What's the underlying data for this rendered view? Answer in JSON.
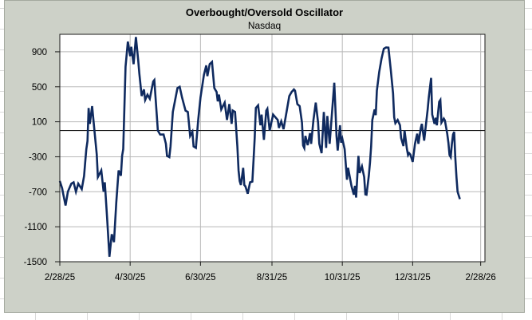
{
  "chart_data": {
    "type": "line",
    "title": "Overbought/Oversold Oscillator",
    "subtitle": "Nasdaq",
    "x_axis": {
      "tick_labels": [
        "2/28/25",
        "4/30/25",
        "6/30/25",
        "8/31/25",
        "10/31/25",
        "12/31/25",
        "2/28/26"
      ],
      "tick_days": [
        0,
        61,
        122,
        184,
        245,
        306,
        365
      ],
      "start_date": "2/28/25",
      "max_day": 368.7
    },
    "y_axis": {
      "tick_labels": [
        "900",
        "500",
        "100",
        "-300",
        "-700",
        "-1100",
        "-1500"
      ],
      "ticks": [
        900,
        500,
        100,
        -300,
        -700,
        -1100,
        -1500
      ],
      "ylim": [
        -1500,
        1100
      ],
      "zero_line": true
    },
    "grid": true,
    "legend": false,
    "colors": {
      "chart_bg": "#cdd1c8",
      "plot_bg": "#ffffff",
      "line": "#0f2a5f",
      "gridline": "#b8b8b8",
      "axis": "#1a1a1a",
      "zero_line": "#1a1a1a"
    },
    "series": [
      {
        "name": "Nasdaq Overbought/Oversold Oscillator",
        "points": [
          [
            0,
            -578
          ],
          [
            2,
            -660
          ],
          [
            3,
            -727
          ],
          [
            5,
            -857
          ],
          [
            7,
            -700
          ],
          [
            9,
            -637
          ],
          [
            10,
            -607
          ],
          [
            12,
            -592
          ],
          [
            14,
            -700
          ],
          [
            16,
            -607
          ],
          [
            19,
            -670
          ],
          [
            21,
            -520
          ],
          [
            22,
            -364
          ],
          [
            23,
            -215
          ],
          [
            24,
            -120
          ],
          [
            25,
            258
          ],
          [
            26,
            76
          ],
          [
            28,
            279
          ],
          [
            30,
            0
          ],
          [
            32,
            -273
          ],
          [
            33,
            -532
          ],
          [
            36,
            -456
          ],
          [
            38,
            -699
          ],
          [
            39,
            -592
          ],
          [
            41,
            -1002
          ],
          [
            43,
            -1443
          ],
          [
            45,
            -1185
          ],
          [
            47,
            -1276
          ],
          [
            49,
            -820
          ],
          [
            51,
            -456
          ],
          [
            53,
            -517
          ],
          [
            54,
            -289
          ],
          [
            55,
            -213
          ],
          [
            57,
            729
          ],
          [
            59,
            1017
          ],
          [
            61,
            850
          ],
          [
            62,
            957
          ],
          [
            64,
            759
          ],
          [
            66,
            1069
          ],
          [
            68,
            800
          ],
          [
            69,
            652
          ],
          [
            71,
            395
          ],
          [
            73,
            470
          ],
          [
            74,
            349
          ],
          [
            76,
            410
          ],
          [
            78,
            364
          ],
          [
            81,
            561
          ],
          [
            82,
            577
          ],
          [
            85,
            0
          ],
          [
            87,
            -46
          ],
          [
            90,
            -46
          ],
          [
            92,
            -152
          ],
          [
            93,
            -289
          ],
          [
            95,
            -304
          ],
          [
            96,
            -182
          ],
          [
            98,
            212
          ],
          [
            100,
            349
          ],
          [
            102,
            486
          ],
          [
            104,
            501
          ],
          [
            106,
            379
          ],
          [
            109,
            228
          ],
          [
            111,
            212
          ],
          [
            113,
            -61
          ],
          [
            115,
            -15
          ],
          [
            116,
            -182
          ],
          [
            118,
            -198
          ],
          [
            120,
            121
          ],
          [
            122,
            379
          ],
          [
            125,
            638
          ],
          [
            127,
            744
          ],
          [
            128,
            622
          ],
          [
            130,
            759
          ],
          [
            132,
            784
          ],
          [
            134,
            486
          ],
          [
            136,
            440
          ],
          [
            137,
            334
          ],
          [
            138,
            410
          ],
          [
            140,
            242
          ],
          [
            143,
            319
          ],
          [
            145,
            121
          ],
          [
            147,
            303
          ],
          [
            149,
            76
          ],
          [
            150,
            228
          ],
          [
            152,
            212
          ],
          [
            154,
            -182
          ],
          [
            155,
            -456
          ],
          [
            156,
            -578
          ],
          [
            157,
            -623
          ],
          [
            159,
            -426
          ],
          [
            160,
            -623
          ],
          [
            161,
            -638
          ],
          [
            163,
            -723
          ],
          [
            165,
            -592
          ],
          [
            167,
            -583
          ],
          [
            168,
            -334
          ],
          [
            169,
            -91
          ],
          [
            170,
            258
          ],
          [
            172,
            288
          ],
          [
            174,
            60
          ],
          [
            175,
            182
          ],
          [
            177,
            -106
          ],
          [
            179,
            228
          ],
          [
            180,
            249
          ],
          [
            182,
            0
          ],
          [
            185,
            182
          ],
          [
            189,
            121
          ],
          [
            190,
            30
          ],
          [
            192,
            106
          ],
          [
            194,
            15
          ],
          [
            197,
            242
          ],
          [
            199,
            395
          ],
          [
            201,
            440
          ],
          [
            203,
            470
          ],
          [
            204,
            456
          ],
          [
            206,
            303
          ],
          [
            208,
            279
          ],
          [
            210,
            91
          ],
          [
            211,
            -170
          ],
          [
            212,
            -200
          ],
          [
            213,
            -61
          ],
          [
            215,
            -167
          ],
          [
            217,
            -30
          ],
          [
            218,
            -152
          ],
          [
            220,
            121
          ],
          [
            222,
            319
          ],
          [
            224,
            91
          ],
          [
            225,
            -152
          ],
          [
            227,
            -258
          ],
          [
            229,
            212
          ],
          [
            231,
            -198
          ],
          [
            232,
            167
          ],
          [
            234,
            -152
          ],
          [
            238,
            546
          ],
          [
            239,
            258
          ],
          [
            240,
            -61
          ],
          [
            241,
            -228
          ],
          [
            243,
            60
          ],
          [
            244,
            -139
          ],
          [
            245,
            -94
          ],
          [
            247,
            -214
          ],
          [
            249,
            -562
          ],
          [
            250,
            -426
          ],
          [
            253,
            -635
          ],
          [
            255,
            -734
          ],
          [
            256,
            -632
          ],
          [
            257,
            -766
          ],
          [
            259,
            -289
          ],
          [
            260,
            -486
          ],
          [
            262,
            -410
          ],
          [
            264,
            -532
          ],
          [
            265,
            -730
          ],
          [
            266,
            -734
          ],
          [
            268,
            -517
          ],
          [
            269,
            -364
          ],
          [
            270,
            -182
          ],
          [
            271,
            121
          ],
          [
            273,
            242
          ],
          [
            274,
            176
          ],
          [
            275,
            456
          ],
          [
            277,
            668
          ],
          [
            279,
            820
          ],
          [
            281,
            935
          ],
          [
            283,
            950
          ],
          [
            285,
            948
          ],
          [
            287,
            698
          ],
          [
            289,
            425
          ],
          [
            290,
            151
          ],
          [
            291,
            85
          ],
          [
            293,
            121
          ],
          [
            295,
            60
          ],
          [
            296,
            -86
          ],
          [
            298,
            -177
          ],
          [
            299,
            0
          ],
          [
            301,
            -207
          ],
          [
            302,
            -280
          ],
          [
            303,
            -258
          ],
          [
            304,
            -274
          ],
          [
            306,
            -359
          ],
          [
            308,
            -152
          ],
          [
            309,
            -91
          ],
          [
            310,
            -36
          ],
          [
            311,
            -152
          ],
          [
            313,
            24
          ],
          [
            314,
            76
          ],
          [
            316,
            -115
          ],
          [
            318,
            121
          ],
          [
            319,
            242
          ],
          [
            320,
            379
          ],
          [
            322,
            601
          ],
          [
            323,
            182
          ],
          [
            325,
            76
          ],
          [
            326,
            146
          ],
          [
            327,
            60
          ],
          [
            329,
            328
          ],
          [
            330,
            349
          ],
          [
            331,
            91
          ],
          [
            333,
            137
          ],
          [
            334,
            115
          ],
          [
            336,
            -36
          ],
          [
            337,
            -140
          ],
          [
            338,
            -280
          ],
          [
            339,
            -304
          ],
          [
            340,
            -158
          ],
          [
            341,
            -46
          ],
          [
            342,
            -15
          ],
          [
            343,
            -304
          ],
          [
            344,
            -532
          ],
          [
            345,
            -699
          ],
          [
            347,
            -784
          ]
        ]
      }
    ]
  }
}
